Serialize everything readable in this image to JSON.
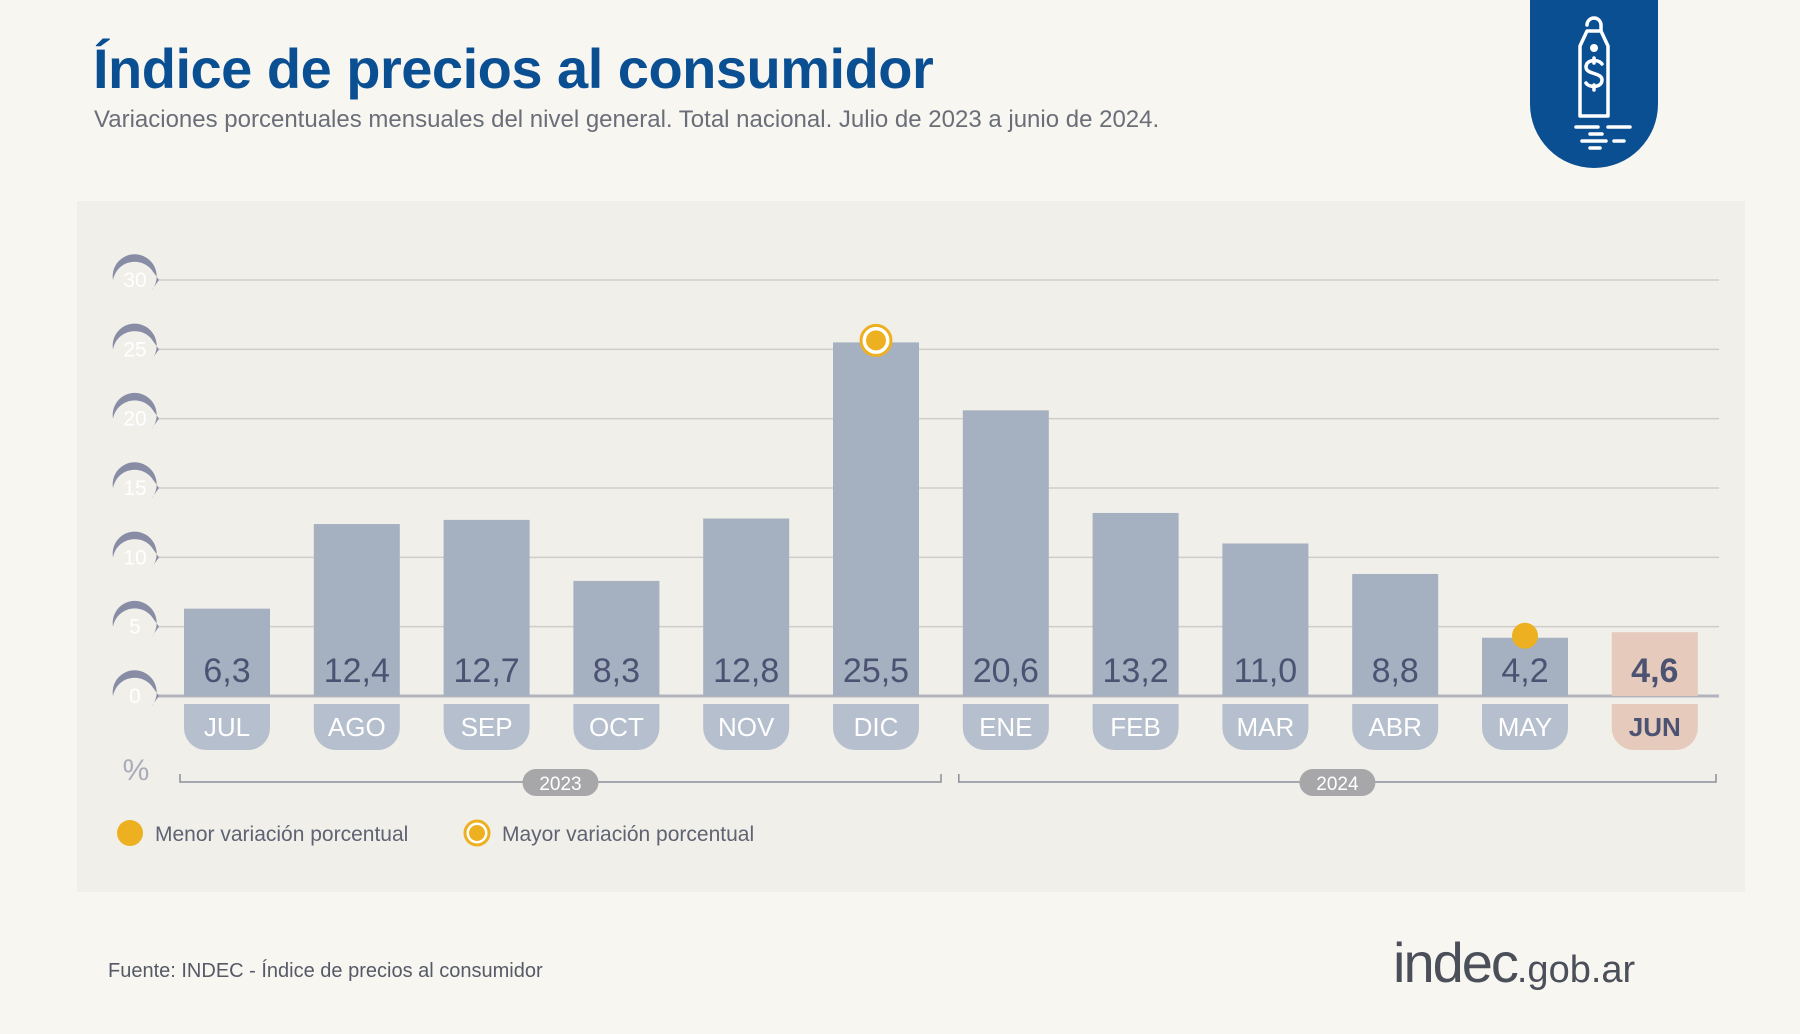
{
  "header": {
    "title": "Índice de precios al consumidor",
    "subtitle": "Variaciones porcentuales mensuales del nivel general. Total nacional. Julio de 2023 a junio de 2024.",
    "badge_icon": "price-tag-dollar-icon"
  },
  "chart_data": {
    "type": "bar",
    "title": "Índice de precios al consumidor",
    "categories": [
      "JUL",
      "AGO",
      "SEP",
      "OCT",
      "NOV",
      "DIC",
      "ENE",
      "FEB",
      "MAR",
      "ABR",
      "MAY",
      "JUN"
    ],
    "values": [
      6.3,
      12.4,
      12.7,
      8.3,
      12.8,
      25.5,
      20.6,
      13.2,
      11.0,
      8.8,
      4.2,
      4.6
    ],
    "value_labels": [
      "6,3",
      "12,4",
      "12,7",
      "8,3",
      "12,8",
      "25,5",
      "20,6",
      "13,2",
      "11,0",
      "8,8",
      "4,2",
      "4,6"
    ],
    "ylabel": "%",
    "ylim": [
      0,
      30
    ],
    "yticks": [
      0,
      5,
      10,
      15,
      20,
      25,
      30
    ],
    "grid": true,
    "year_groups": [
      {
        "label": "2023",
        "months": [
          "JUL",
          "AGO",
          "SEP",
          "OCT",
          "NOV",
          "DIC"
        ]
      },
      {
        "label": "2024",
        "months": [
          "ENE",
          "FEB",
          "MAR",
          "ABR",
          "MAY",
          "JUN"
        ]
      }
    ],
    "highlighted_category": "JUN",
    "markers": [
      {
        "category": "MAY",
        "type": "min"
      },
      {
        "category": "DIC",
        "type": "max"
      }
    ],
    "legend": {
      "placement": "bottom-left",
      "items": [
        {
          "label": "Menor variación porcentual",
          "type": "min"
        },
        {
          "label": "Mayor variación porcentual",
          "type": "max"
        }
      ]
    },
    "colors": {
      "bar": "#a5b0c1",
      "bar_label_bg": "#b6bfcd",
      "highlight": "#e6cbbd",
      "marker": "#edb021",
      "tick_bubble": "#888da5",
      "value_text": "#4b5272"
    }
  },
  "footer": {
    "source": "Fuente: INDEC - Índice de precios al consumidor",
    "logo_main": "indec",
    "logo_suffix": ".gob.ar"
  }
}
